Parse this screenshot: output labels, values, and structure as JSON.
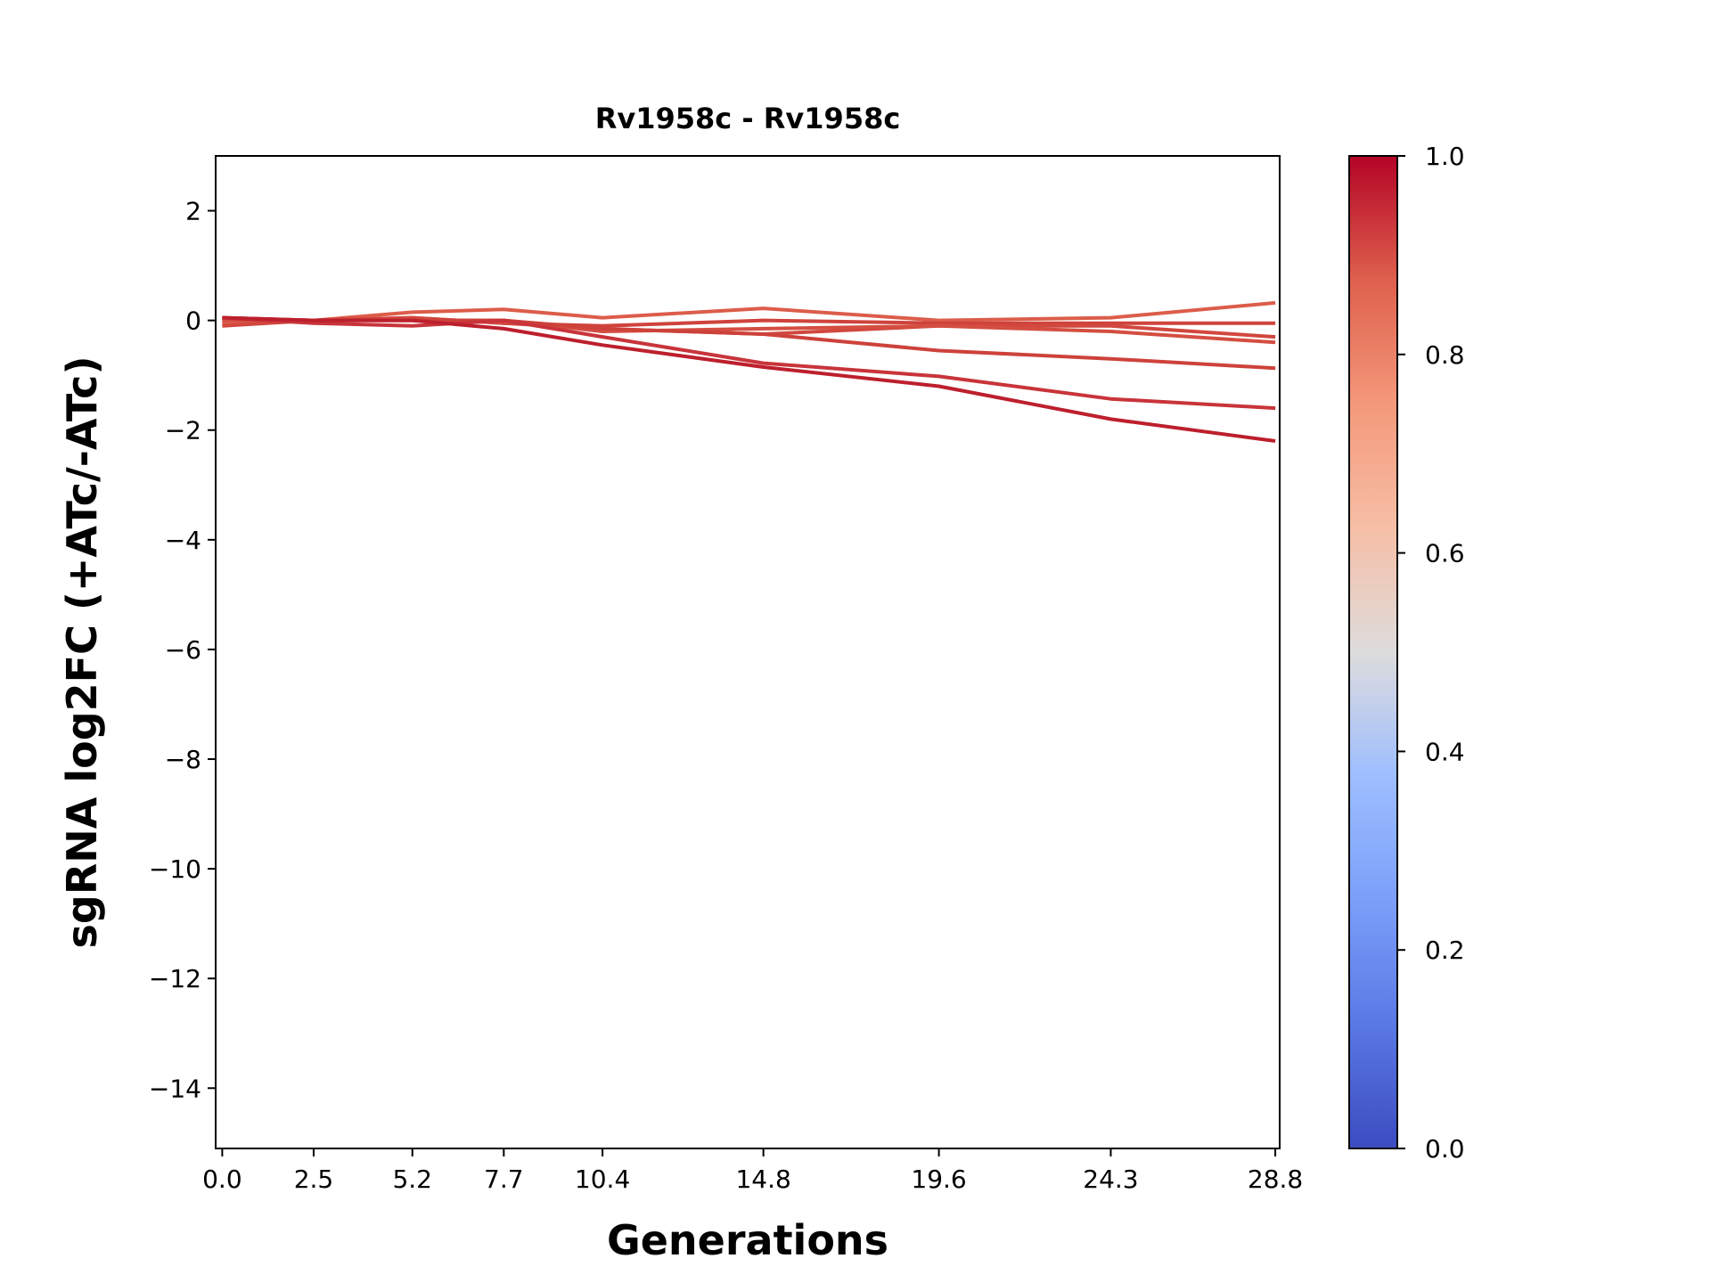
{
  "chart_data": {
    "type": "line",
    "title": "Rv1958c - Rv1958c",
    "xlabel": "Generations",
    "ylabel": "sgRNA log2FC (+ATc/-ATc)",
    "x": [
      0.0,
      2.5,
      5.2,
      7.7,
      10.4,
      14.8,
      19.6,
      24.3,
      28.8
    ],
    "x_tick_labels": [
      "0.0",
      "2.5",
      "5.2",
      "7.7",
      "10.4",
      "14.8",
      "19.6",
      "24.3",
      "28.8"
    ],
    "y_ticks": [
      2,
      0,
      -2,
      -4,
      -6,
      -8,
      -10,
      -12,
      -14
    ],
    "y_tick_labels": [
      "2",
      "0",
      "−2",
      "−4",
      "−6",
      "−8",
      "−10",
      "−12",
      "−14"
    ],
    "xlim": [
      -0.18,
      28.92
    ],
    "ylim": [
      -15.1,
      3
    ],
    "grid": false,
    "series": [
      {
        "color_value": 0.87,
        "color": "#dc5d4a",
        "values": [
          -0.05,
          0.0,
          0.15,
          0.2,
          0.05,
          0.22,
          0.0,
          0.05,
          0.32
        ]
      },
      {
        "color_value": 0.92,
        "color": "#cf433c",
        "values": [
          0.05,
          0.0,
          0.05,
          -0.05,
          -0.1,
          0.0,
          -0.05,
          -0.05,
          -0.05
        ]
      },
      {
        "color_value": 0.91,
        "color": "#d2473e",
        "values": [
          -0.1,
          0.0,
          0.05,
          -0.05,
          -0.15,
          -0.25,
          -0.1,
          -0.1,
          -0.3
        ]
      },
      {
        "color_value": 0.9,
        "color": "#d44e41",
        "values": [
          0.0,
          0.0,
          0.0,
          0.0,
          -0.2,
          -0.15,
          -0.1,
          -0.2,
          -0.4
        ]
      },
      {
        "color_value": 0.92,
        "color": "#cd423b",
        "values": [
          0.05,
          0.0,
          0.0,
          0.0,
          -0.15,
          -0.25,
          -0.55,
          -0.7,
          -0.87
        ]
      },
      {
        "color_value": 0.94,
        "color": "#c8343a",
        "values": [
          0.05,
          -0.05,
          -0.1,
          0.0,
          -0.3,
          -0.78,
          -1.02,
          -1.43,
          -1.6
        ]
      },
      {
        "color_value": 0.97,
        "color": "#bd1f2d",
        "values": [
          0.05,
          0.0,
          0.0,
          -0.15,
          -0.45,
          -0.85,
          -1.2,
          -1.8,
          -2.2
        ]
      }
    ],
    "colorbar": {
      "colormap": "coolwarm",
      "range": [
        0.0,
        1.0
      ],
      "ticks": [
        0.0,
        0.2,
        0.4,
        0.6,
        0.8,
        1.0
      ],
      "tick_labels": [
        "0.0",
        "0.2",
        "0.4",
        "0.6",
        "0.8",
        "1.0"
      ]
    }
  }
}
